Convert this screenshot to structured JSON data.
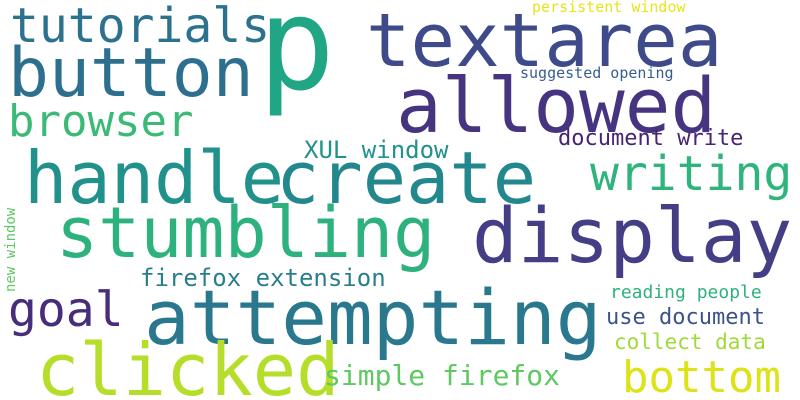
{
  "words": [
    {
      "text": "p",
      "color": "#21a685"
    },
    {
      "text": "textarea",
      "color": "#3e4a89"
    },
    {
      "text": "tutorials",
      "color": "#2c728e"
    },
    {
      "text": "button",
      "color": "#2d6f8e"
    },
    {
      "text": "allowed",
      "color": "#463480"
    },
    {
      "text": "browser",
      "color": "#3aba76"
    },
    {
      "text": "persistent window",
      "color": "#e8e419"
    },
    {
      "text": "suggested opening",
      "color": "#355e8d"
    },
    {
      "text": "document write",
      "color": "#482374"
    },
    {
      "text": "XUL window",
      "color": "#21918c"
    },
    {
      "text": "handle",
      "color": "#21918c"
    },
    {
      "text": "create",
      "color": "#23888e"
    },
    {
      "text": "writing",
      "color": "#2fb47c"
    },
    {
      "text": "stumbling",
      "color": "#2db27d"
    },
    {
      "text": "display",
      "color": "#433e85"
    },
    {
      "text": "new window",
      "color": "#5ec962"
    },
    {
      "text": "firefox extension",
      "color": "#287d8e"
    },
    {
      "text": "goal",
      "color": "#472d7b"
    },
    {
      "text": "attempting",
      "color": "#2a788e"
    },
    {
      "text": "reading people",
      "color": "#2db27d"
    },
    {
      "text": "use document",
      "color": "#3b528b"
    },
    {
      "text": "collect data",
      "color": "#a0da39"
    },
    {
      "text": "clicked",
      "color": "#b5de2b"
    },
    {
      "text": "simple firefox",
      "color": "#5ec962"
    },
    {
      "text": "bottom",
      "color": "#dde318"
    }
  ]
}
